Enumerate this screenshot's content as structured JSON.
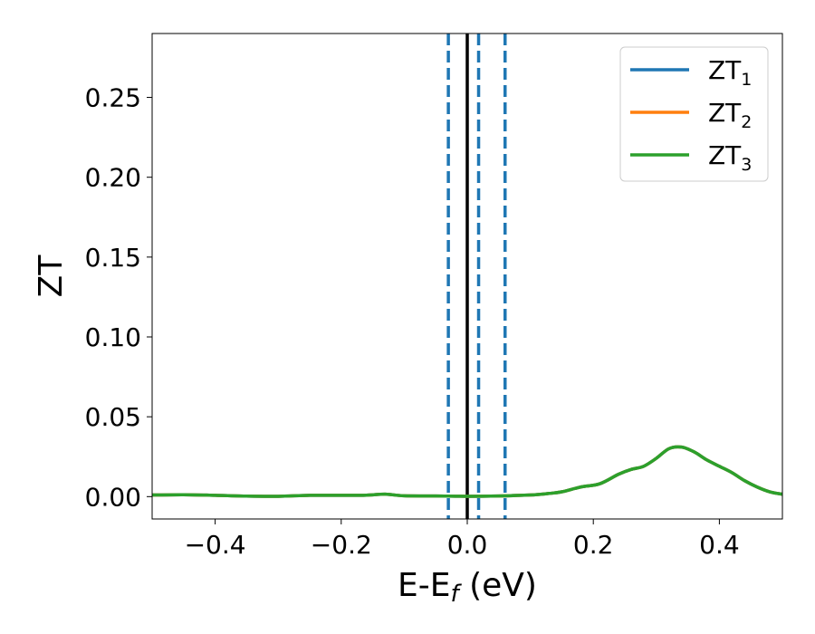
{
  "chart_data": {
    "type": "line",
    "xlabel": "E-E_f (eV)",
    "xlabel_main": "E-E",
    "xlabel_sub": "f",
    "xlabel_unit": " (eV)",
    "ylabel": "ZT",
    "xlim": [
      -0.5,
      0.5
    ],
    "ylim": [
      -0.014,
      0.29
    ],
    "grid": false,
    "legend_position": "top-right",
    "x_ticks": [
      -0.4,
      -0.2,
      0.0,
      0.2,
      0.4
    ],
    "x_tick_labels": [
      "−0.4",
      "−0.2",
      "0.0",
      "0.2",
      "0.4"
    ],
    "y_ticks": [
      0.0,
      0.05,
      0.1,
      0.15,
      0.2,
      0.25
    ],
    "y_tick_labels": [
      "0.00",
      "0.05",
      "0.10",
      "0.15",
      "0.20",
      "0.25"
    ],
    "vertical_lines": [
      {
        "x": -0.03,
        "style": "dashed",
        "color": "#1f77b4"
      },
      {
        "x": 0.0,
        "style": "solid",
        "color": "#000000"
      },
      {
        "x": 0.018,
        "style": "dashed",
        "color": "#1f77b4"
      },
      {
        "x": 0.06,
        "style": "dashed",
        "color": "#1f77b4"
      }
    ],
    "series": [
      {
        "name": "ZT1",
        "label_main": "ZT",
        "label_sub": "1",
        "color": "#1f77b4",
        "x": [
          -0.5,
          -0.45,
          -0.4,
          -0.35,
          -0.3,
          -0.25,
          -0.2,
          -0.16,
          -0.13,
          -0.1,
          -0.05,
          0.0,
          0.05,
          0.1,
          0.13,
          0.15,
          0.18,
          0.21,
          0.24,
          0.26,
          0.28,
          0.3,
          0.32,
          0.34,
          0.36,
          0.38,
          0.4,
          0.42,
          0.44,
          0.46,
          0.48,
          0.5
        ],
        "y": [
          0.001,
          0.0012,
          0.0008,
          0.0003,
          0.0002,
          0.0008,
          0.0008,
          0.0009,
          0.0015,
          0.0005,
          0.0004,
          0.0002,
          0.0004,
          0.001,
          0.002,
          0.003,
          0.006,
          0.008,
          0.014,
          0.017,
          0.019,
          0.024,
          0.03,
          0.031,
          0.028,
          0.023,
          0.019,
          0.015,
          0.01,
          0.006,
          0.003,
          0.0015
        ]
      },
      {
        "name": "ZT2",
        "label_main": "ZT",
        "label_sub": "2",
        "color": "#ff7f0e",
        "x": [
          -0.5,
          -0.45,
          -0.4,
          -0.35,
          -0.3,
          -0.25,
          -0.2,
          -0.16,
          -0.13,
          -0.1,
          -0.05,
          0.0,
          0.05,
          0.1,
          0.13,
          0.15,
          0.18,
          0.21,
          0.24,
          0.26,
          0.28,
          0.3,
          0.32,
          0.34,
          0.36,
          0.38,
          0.4,
          0.42,
          0.44,
          0.46,
          0.48,
          0.5
        ],
        "y": [
          0.001,
          0.0012,
          0.0008,
          0.0003,
          0.0002,
          0.0008,
          0.0008,
          0.0009,
          0.0015,
          0.0005,
          0.0004,
          0.0002,
          0.0004,
          0.001,
          0.002,
          0.003,
          0.006,
          0.008,
          0.014,
          0.017,
          0.019,
          0.024,
          0.03,
          0.031,
          0.028,
          0.023,
          0.019,
          0.015,
          0.01,
          0.006,
          0.003,
          0.0015
        ]
      },
      {
        "name": "ZT3",
        "label_main": "ZT",
        "label_sub": "3",
        "color": "#2ca02c",
        "x": [
          -0.5,
          -0.45,
          -0.4,
          -0.35,
          -0.3,
          -0.25,
          -0.2,
          -0.16,
          -0.13,
          -0.1,
          -0.05,
          0.0,
          0.05,
          0.1,
          0.13,
          0.15,
          0.18,
          0.21,
          0.24,
          0.26,
          0.28,
          0.3,
          0.32,
          0.34,
          0.36,
          0.38,
          0.4,
          0.42,
          0.44,
          0.46,
          0.48,
          0.5
        ],
        "y": [
          0.001,
          0.0012,
          0.0008,
          0.0003,
          0.0002,
          0.0008,
          0.0008,
          0.0009,
          0.0015,
          0.0005,
          0.0004,
          0.0002,
          0.0004,
          0.001,
          0.002,
          0.003,
          0.006,
          0.008,
          0.014,
          0.017,
          0.019,
          0.024,
          0.03,
          0.031,
          0.028,
          0.023,
          0.019,
          0.015,
          0.01,
          0.006,
          0.003,
          0.0015
        ]
      }
    ]
  }
}
